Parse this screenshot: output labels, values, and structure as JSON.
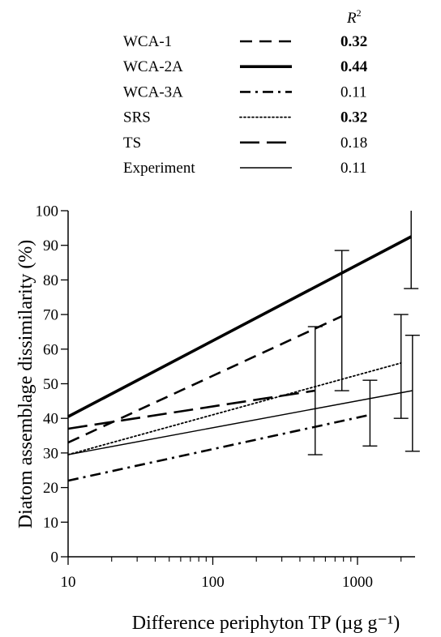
{
  "chart_data": {
    "type": "line",
    "xscale": "log",
    "xlabel": "Difference periphyton TP (µg g⁻¹)",
    "ylabel": "Diatom assemblage dissimilarity (%)",
    "xlim": [
      10,
      2500
    ],
    "ylim": [
      0,
      100
    ],
    "x_ticks": [
      {
        "value": 10,
        "label": "10"
      },
      {
        "value": 100,
        "label": "100"
      },
      {
        "value": 1000,
        "label": "1000"
      }
    ],
    "y_ticks": [
      {
        "value": 0,
        "label": "0"
      },
      {
        "value": 10,
        "label": "10"
      },
      {
        "value": 20,
        "label": "20"
      },
      {
        "value": 30,
        "label": "30"
      },
      {
        "value": 40,
        "label": "40"
      },
      {
        "value": 50,
        "label": "50"
      },
      {
        "value": 60,
        "label": "60"
      },
      {
        "value": 70,
        "label": "70"
      },
      {
        "value": 80,
        "label": "80"
      },
      {
        "value": 90,
        "label": "90"
      },
      {
        "value": 100,
        "label": "100"
      }
    ],
    "grid": false,
    "legend": {
      "position": "top",
      "r2_header": "R",
      "r2_header_sup": "2"
    },
    "series": [
      {
        "name": "WCA-1",
        "style": "dashed",
        "r2": "0.32",
        "r2_bold": true,
        "x": [
          10,
          780
        ],
        "y": [
          33,
          69.5
        ],
        "error_bars": [
          {
            "x": 780,
            "low": 48,
            "high": 88.5
          }
        ]
      },
      {
        "name": "WCA-2A",
        "style": "solid-thick",
        "r2": "0.44",
        "r2_bold": true,
        "x": [
          10,
          2350
        ],
        "y": [
          40.5,
          92.5
        ],
        "error_bars": [
          {
            "x": 2350,
            "low": 77.5,
            "high": 100
          }
        ]
      },
      {
        "name": "WCA-3A",
        "style": "dash-dot",
        "r2": "0.11",
        "r2_bold": false,
        "x": [
          10,
          1220
        ],
        "y": [
          22,
          41
        ],
        "error_bars": [
          {
            "x": 1220,
            "low": 32,
            "high": 51
          }
        ]
      },
      {
        "name": "SRS",
        "style": "dotted",
        "r2": "0.32",
        "r2_bold": true,
        "x": [
          10,
          2000
        ],
        "y": [
          29.5,
          56
        ],
        "error_bars": [
          {
            "x": 2000,
            "low": 40,
            "high": 70
          }
        ]
      },
      {
        "name": "TS",
        "style": "long-dash",
        "r2": "0.18",
        "r2_bold": false,
        "x": [
          10,
          510
        ],
        "y": [
          37,
          48
        ],
        "error_bars": [
          {
            "x": 510,
            "low": 29.5,
            "high": 66.5
          }
        ]
      },
      {
        "name": "Experiment",
        "style": "solid-thin",
        "r2": "0.11",
        "r2_bold": false,
        "x": [
          10,
          2400
        ],
        "y": [
          29.5,
          48
        ],
        "error_bars": [
          {
            "x": 2400,
            "low": 30.5,
            "high": 64
          }
        ]
      }
    ]
  }
}
